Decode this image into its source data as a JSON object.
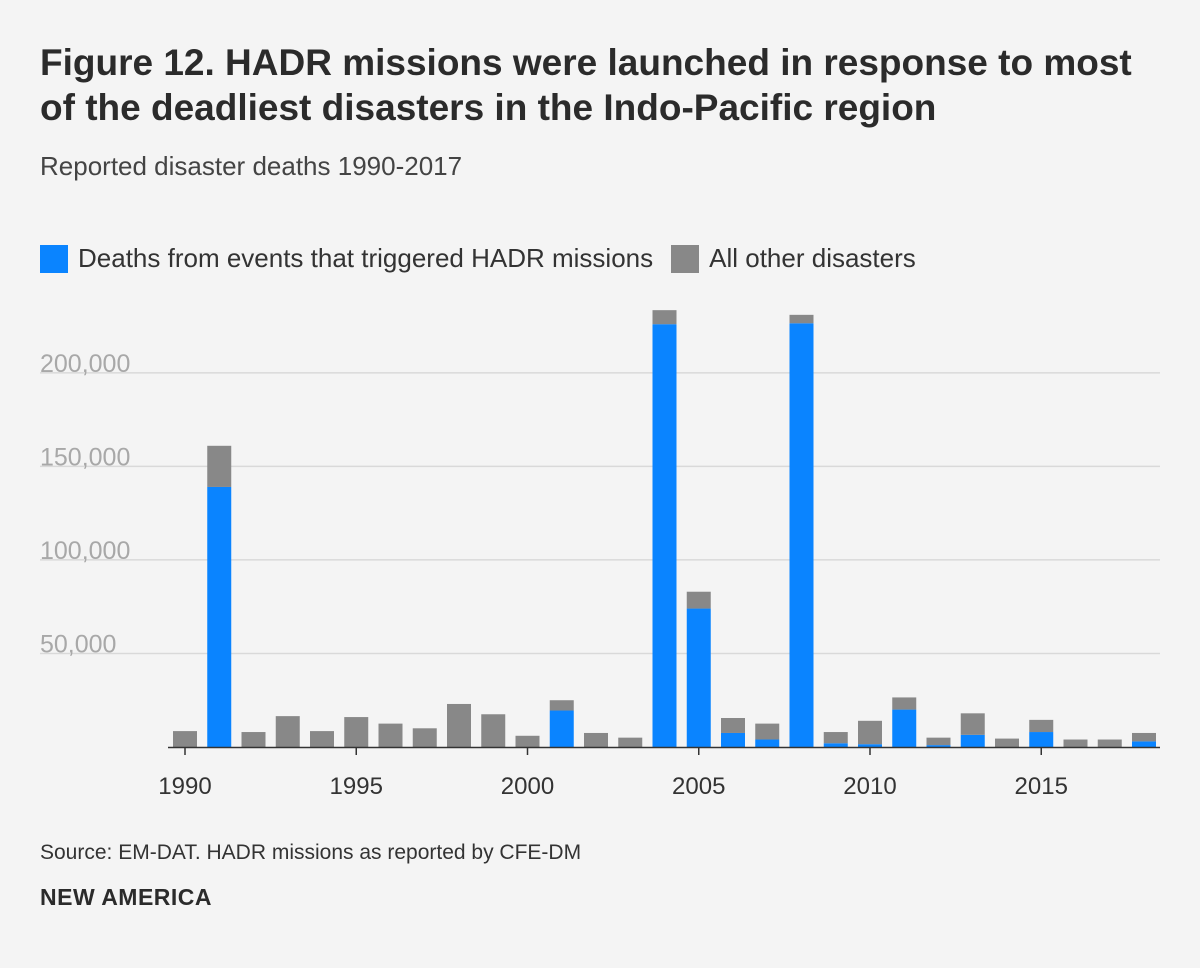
{
  "chart_data": {
    "type": "bar",
    "stacked": true,
    "title": "Figure 12. HADR missions were launched in response to most of the deadliest disasters in the Indo-Pacific region",
    "subtitle": "Reported disaster deaths 1990-2017",
    "xlabel": "",
    "ylabel": "",
    "ylim": [
      0,
      240000
    ],
    "yticks": [
      50000,
      100000,
      150000,
      200000
    ],
    "ytick_labels": [
      "50,000",
      "100,000",
      "150,000",
      "200,000"
    ],
    "xticks": [
      1990,
      1995,
      2000,
      2005,
      2010,
      2015
    ],
    "xtick_labels": [
      "1990",
      "1995",
      "2000",
      "2005",
      "2010",
      "2015"
    ],
    "grid": true,
    "legend_position": "top-left",
    "categories": [
      1990,
      1991,
      1992,
      1993,
      1994,
      1995,
      1996,
      1997,
      1998,
      1999,
      2000,
      2001,
      2002,
      2003,
      2004,
      2005,
      2006,
      2007,
      2008,
      2009,
      2010,
      2011,
      2012,
      2013,
      2014,
      2015,
      2016,
      2017,
      2018
    ],
    "series": [
      {
        "name": "Deaths from events that triggered HADR missions",
        "color": "#0a84ff",
        "values": [
          0,
          139000,
          0,
          0,
          0,
          0,
          0,
          0,
          0,
          0,
          0,
          19500,
          0,
          0,
          226000,
          74000,
          7500,
          4000,
          226500,
          2000,
          1500,
          20000,
          1000,
          6500,
          0,
          8000,
          0,
          0,
          3000
        ]
      },
      {
        "name": "All other disasters",
        "color": "#888888",
        "values": [
          8500,
          22000,
          8000,
          16500,
          8500,
          16000,
          12500,
          10000,
          23000,
          17500,
          6000,
          5500,
          7500,
          5000,
          7500,
          9000,
          8000,
          8500,
          4500,
          6000,
          12500,
          6500,
          4000,
          11500,
          4500,
          6500,
          4000,
          4000,
          4500
        ]
      }
    ]
  },
  "footer": {
    "source": "Source: EM-DAT. HADR missions as reported by CFE-DM",
    "brand": "NEW AMERICA"
  }
}
